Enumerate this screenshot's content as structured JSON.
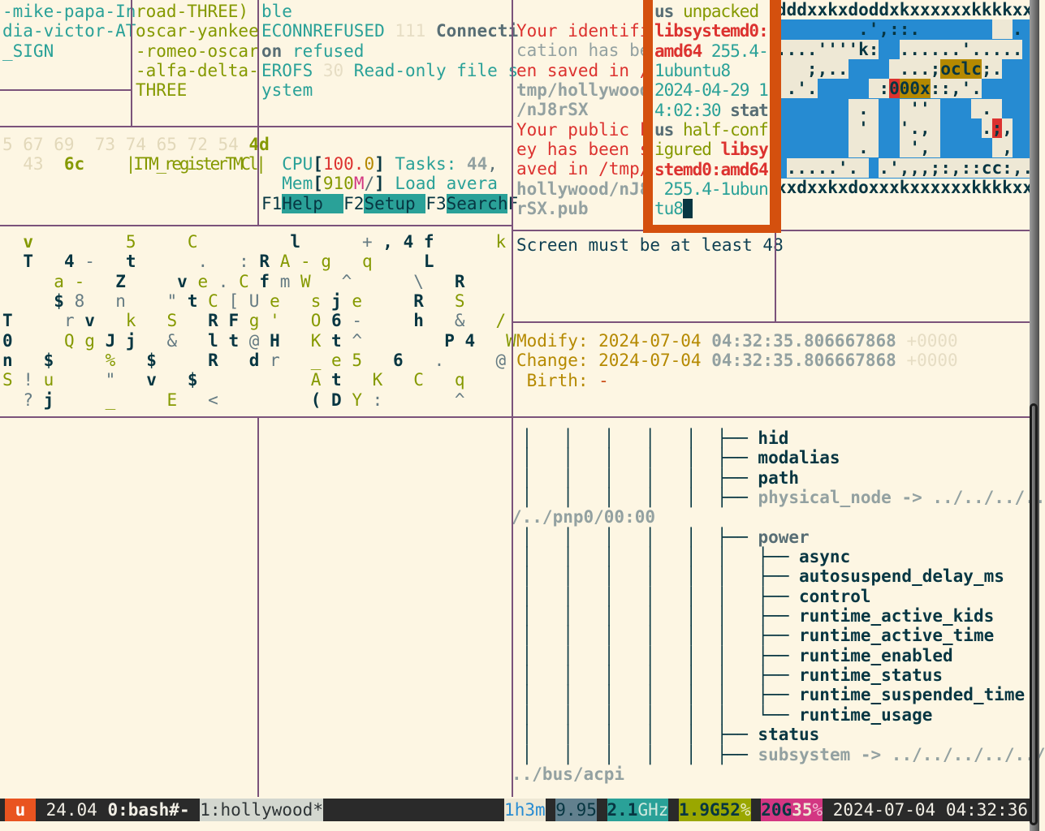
{
  "palette": {
    "background": "#fdf6e3",
    "pane_border": "#7b537b",
    "active_border": "#d4500e",
    "ocean_blue": "#268bd2",
    "cyan": "#2aa198",
    "green": "#859900",
    "red": "#dc322f",
    "yellow": "#b58900",
    "magenta": "#d33682",
    "gray": "#93a1a1",
    "dark": "#073642",
    "statusbar_bg": "#2a2a2a",
    "logo_orange": "#e95420"
  },
  "panes": {
    "phonetic1": {
      "lines": [
        "-mike-papa-In",
        "dia-victor-AT",
        "_SIGN"
      ]
    },
    "phonetic2": {
      "lines": [
        "road-THREE)",
        "oscar-yankee",
        "-romeo-oscar",
        "-alfa-delta-",
        "THREE"
      ]
    },
    "errno": {
      "lines": [
        [
          {
            "t": "ble",
            "c": "cyan"
          }
        ],
        [
          {
            "t": "ECONNREFUSED",
            "c": "cyan"
          },
          {
            "t": " 111 ",
            "c": "faint"
          },
          {
            "t": "Connecti",
            "c": "slate",
            "w": 1
          }
        ],
        [
          {
            "t": "on",
            "c": "slate",
            "w": 1
          },
          {
            "t": " refused",
            "c": "cyan"
          }
        ],
        [
          {
            "t": "EROFS",
            "c": "cyan"
          },
          {
            "t": " 30 ",
            "c": "faint"
          },
          {
            "t": "Read-only file s",
            "c": "cyan"
          }
        ],
        [
          {
            "t": "ystem",
            "c": "cyan"
          }
        ]
      ]
    },
    "hexdump": {
      "lines": [
        [
          {
            "t": "5 67 69  73 74 65 72 54",
            "c": "faint2"
          },
          {
            "t": " "
          },
          {
            "t": "4d",
            "c": "green",
            "w": 1
          }
        ],
        [
          {
            "t": "  43",
            "c": "faint2"
          },
          {
            "t": "  "
          },
          {
            "t": "6c",
            "c": "green",
            "w": 1
          },
          {
            "t": "    "
          },
          {
            "t": "|ITM_registerTMCl|",
            "c": "green",
            "cond": 1
          }
        ]
      ]
    },
    "htop": {
      "lines": [
        [
          {
            "t": "  CPU",
            "c": "cyan"
          },
          {
            "t": "[",
            "c": "dark",
            "w": 1
          },
          {
            "t": "100.",
            "c": "red"
          },
          {
            "t": "0",
            "c": "yellow"
          },
          {
            "t": "]",
            "c": "dark",
            "w": 1
          },
          {
            "t": " Tasks: ",
            "c": "cyan"
          },
          {
            "t": "44",
            "c": "gray",
            "w": 1
          },
          {
            "t": ",",
            "c": "slate"
          }
        ],
        [
          {
            "t": "  Mem",
            "c": "cyan"
          },
          {
            "t": "[",
            "c": "dark",
            "w": 1
          },
          {
            "t": "910",
            "c": "green"
          },
          {
            "t": "M",
            "c": "magenta"
          },
          {
            "t": "/",
            "c": "slate"
          },
          {
            "t": "]",
            "c": "dark",
            "w": 1
          },
          {
            "t": " Load avera",
            "c": "cyan"
          }
        ],
        [
          {
            "t": "F1",
            "c": "dark"
          },
          {
            "t": "Help  ",
            "c": "dark",
            "b": "keybtn"
          },
          {
            "t": "F2",
            "c": "dark"
          },
          {
            "t": "Setup ",
            "c": "dark",
            "b": "keybtn"
          },
          {
            "t": "F3",
            "c": "dark"
          },
          {
            "t": "Search",
            "c": "dark",
            "b": "keybtn"
          },
          {
            "t": "F",
            "c": "dark"
          }
        ]
      ]
    },
    "matrix": {
      "rows": [
        {
          "t": "  v         5     C         l      + , 4 f      k ",
          "m": "  O         o     o         S      s S S S      o "
        },
        {
          "t": "  T   4 -   t      .   : R A - g   q     L        ",
          "m": "  S   S s   S      s   s S o o o   o     S        "
        },
        {
          "t": "     a -   Z     v e . C f m W   ^      \\   R     ",
          "m": "     o o   S     S o s o S s o   s      s   S     "
        },
        {
          "t": "     $ 8   n    \" t C [ U e   s j e     R   S    ",
          "m": "     S s   s    s S o s s o   o S o     S   o    "
        },
        {
          "t": "T     r v   k   S   R F g '   O 6 -     h   &   / ",
          "m": "S     s S   o   o   S S o o   o S s     S   s   o "
        },
        {
          "t": "0     Q g J j   &   l t @ H   K t ^        P 4   W",
          "m": "S     o o S S   s   S S s S   o S s        S S   o"
        },
        {
          "t": "n   $     %   $     R   d r   _ e 5   6   .     @ ",
          "m": "S   S     o   S     S   S s   o o o   S   s     s "
        },
        {
          "t": "S ! u     \"   v   $           A t   K   C   q    ",
          "m": "o s o     s   S   S           o S   o   o   o    "
        },
        {
          "t": "  ? j     _     E   <         ( D Y :       ^     ",
          "m": "  s S     o     o   s         S S o s       s     "
        }
      ]
    },
    "keygen": {
      "lines": [
        {
          "t": "Your identifi",
          "c": "red"
        },
        {
          "t": "cation has be",
          "c": "gray"
        },
        {
          "t": "en saved in /",
          "c": "red"
        },
        {
          "t": "tmp/hollywood",
          "c": "gray",
          "w": 1
        },
        {
          "t": "/nJ8rSX",
          "c": "gray",
          "w": 1
        },
        {
          "t": "Your public k",
          "c": "red"
        },
        {
          "t": "ey has been s",
          "c": "red"
        },
        {
          "t": "aved in /tmp/",
          "c": "red"
        },
        {
          "t": "hollywood/nJ8",
          "c": "gray",
          "w": 1
        },
        {
          "t": "rSX.pub",
          "c": "gray",
          "w": 1
        }
      ]
    },
    "apt": {
      "lines": [
        [
          {
            "t": "us",
            "c": "slate",
            "w": 1
          },
          {
            "t": " unpacked",
            "c": "green"
          }
        ],
        [
          {
            "t": "libsystemd0:",
            "c": "red",
            "w": 1
          }
        ],
        [
          {
            "t": "amd64",
            "c": "red",
            "w": 1
          },
          {
            "t": " 255.4-",
            "c": "cyan"
          }
        ],
        [
          {
            "t": "1ubuntu8",
            "c": "cyan"
          }
        ],
        [
          {
            "t": "2024-04-29 1",
            "c": "cyan"
          }
        ],
        [
          {
            "t": "4:02:30",
            "c": "cyan"
          },
          {
            "t": " "
          },
          {
            "t": "stat",
            "c": "slate",
            "w": 1
          }
        ],
        [
          {
            "t": "us",
            "c": "slate",
            "w": 1
          },
          {
            "t": " half-conf",
            "c": "green"
          }
        ],
        [
          {
            "t": "igured",
            "c": "green"
          },
          {
            "t": " "
          },
          {
            "t": "libsy",
            "c": "red",
            "w": 1
          }
        ],
        [
          {
            "t": "stemd0:amd64",
            "c": "red",
            "w": 1
          }
        ],
        [
          {
            "t": " 255.4-1ubun",
            "c": "cyan"
          }
        ],
        [
          {
            "t": "tu8",
            "c": "cyan"
          },
          {
            "t": " ",
            "b": "cursor"
          }
        ]
      ]
    },
    "screen_warning": {
      "text": "Screen must be at least 48"
    },
    "stat": {
      "lines": [
        [
          {
            "t": "Modify: 2024-07-04 ",
            "c": "yellow"
          },
          {
            "t": "04:32:35.806667868",
            "c": "gray",
            "w": 1
          },
          {
            "t": " +0000",
            "c": "faint"
          }
        ],
        [
          {
            "t": "Change: 2024-07-04 ",
            "c": "yellow"
          },
          {
            "t": "04:32:35.806667868",
            "c": "gray",
            "w": 1
          },
          {
            "t": " +0000",
            "c": "faint"
          }
        ],
        [
          {
            "t": " Birth: ",
            "c": "yellow"
          },
          {
            "t": "-",
            "c": "orange"
          }
        ]
      ]
    },
    "tree": {
      "lines": [
        [
          {
            "t": " │   │   │   │   │  ├── hid"
          }
        ],
        [
          {
            "t": " │   │   │   │   │  ├── modalias"
          }
        ],
        [
          {
            "t": " │   │   │   │   │  ├── path"
          }
        ],
        [
          {
            "t": " │   │   │   │   │  ├── "
          },
          {
            "t": "physical_node -> ../../../..",
            "c": "gray"
          }
        ],
        [
          {
            "t": "/../pnp0/00:00",
            "c": "gray"
          }
        ],
        [
          {
            "t": " │   │   │   │   │  ├── "
          },
          {
            "t": "power",
            "c": "slate"
          }
        ],
        [
          {
            "t": " │   │   │   │   │  │   ├── async"
          }
        ],
        [
          {
            "t": " │   │   │   │   │  │   ├── autosuspend_delay_ms"
          }
        ],
        [
          {
            "t": " │   │   │   │   │  │   ├── control"
          }
        ],
        [
          {
            "t": " │   │   │   │   │  │   ├── runtime_active_kids"
          }
        ],
        [
          {
            "t": " │   │   │   │   │  │   ├── runtime_active_time"
          }
        ],
        [
          {
            "t": " │   │   │   │   │  │   ├── runtime_enabled"
          }
        ],
        [
          {
            "t": " │   │   │   │   │  │   ├── runtime_status"
          }
        ],
        [
          {
            "t": " │   │   │   │   │  │   ├── runtime_suspended_time"
          }
        ],
        [
          {
            "t": " │   │   │   │   │  │   └── runtime_usage"
          }
        ],
        [
          {
            "t": " │   │   │   │   │  ├── status"
          }
        ],
        [
          {
            "t": " │   │   │   │   │  ├── "
          },
          {
            "t": "subsystem -> ../../../../../",
            "c": "gray"
          }
        ],
        [
          {
            "t": "../bus/acpi",
            "c": "gray"
          }
        ]
      ]
    },
    "map": {
      "lines": [
        [
          {
            "t": "dddxxkxdoddxkxxxxxxkkkkxx"
          }
        ],
        [
          {
            "t": "        .',::.       "
          },
          {
            "t": "  ",
            "b": "land"
          },
          {
            "t": ". "
          }
        ],
        [
          {
            "t": "....''''k:",
            "b": "land"
          },
          {
            "t": "  "
          },
          {
            "t": "......'.....",
            "b": "land"
          },
          {
            "t": " "
          }
        ],
        [
          {
            "t": "   ;,..",
            "b": "land"
          },
          {
            "t": "    "
          },
          {
            "t": " ...;",
            "b": "land"
          },
          {
            "t": "oclc",
            "b": "y"
          },
          {
            "t": ";.",
            "b": "land"
          },
          {
            "t": "   "
          }
        ],
        [
          {
            "t": " .'.",
            "b": "land"
          },
          {
            "t": "     "
          },
          {
            "t": " :",
            "b": "land"
          },
          {
            "t": "0",
            "b": "r"
          },
          {
            "t": "00x",
            "b": "y"
          },
          {
            "t": "::,'.",
            "b": "land"
          },
          {
            "t": "     "
          }
        ],
        [
          {
            "t": "       "
          },
          {
            "t": " . ",
            "b": "land"
          },
          {
            "t": "  "
          },
          {
            "t": " '' ",
            "b": "land"
          },
          {
            "t": "   "
          },
          {
            "t": " . ",
            "b": "land"
          },
          {
            "t": "   "
          }
        ],
        [
          {
            "t": "       "
          },
          {
            "t": " ' ",
            "b": "land"
          },
          {
            "t": "  "
          },
          {
            "t": "'., ",
            "b": "land"
          },
          {
            "t": "    "
          },
          {
            "t": ".",
            "b": "land"
          },
          {
            "t": ";",
            "b": "r"
          },
          {
            "t": ",",
            "b": "land"
          },
          {
            "t": "   "
          }
        ],
        [
          {
            "t": "       "
          },
          {
            "t": " . ",
            "b": "land"
          },
          {
            "t": "  "
          },
          {
            "t": " ', ",
            "b": "land"
          },
          {
            "t": "     "
          },
          {
            "t": " ,",
            "b": "land"
          },
          {
            "t": "  "
          }
        ],
        [
          {
            "t": " "
          },
          {
            "t": ".....'. ",
            "b": "land"
          },
          {
            "t": " "
          },
          {
            "t": ".',,,;:,::cc:,.",
            "b": "land"
          }
        ],
        [
          {
            "t": "xxdxxkxdoxxxkxxxxxxkkkkxx"
          }
        ]
      ]
    }
  },
  "status_bar": {
    "logo": " u ",
    "version": " 24.04 ",
    "window0": "0:bash#- ",
    "window1": "1:hollywood*",
    "right": [
      {
        "t": "1h3m",
        "b": "cream2",
        "c": "blue"
      },
      {
        "t": " "
      },
      {
        "t": "9.95",
        "b": "steel",
        "c": "ink"
      },
      {
        "t": " "
      },
      {
        "t": "2.1",
        "b": "teal",
        "c": "ink",
        "w": 1
      },
      {
        "t": "GHz",
        "b": "teal",
        "c": "paleteal"
      },
      {
        "t": " "
      },
      {
        "t": "1.9G",
        "b": "olive",
        "c": "ink",
        "w": 1
      },
      {
        "t": "52",
        "b": "olive",
        "c": "ink",
        "w": 1
      },
      {
        "t": "%",
        "b": "olive",
        "c": "paleolive"
      },
      {
        "t": " "
      },
      {
        "t": "20G",
        "b": "pink",
        "c": "ink",
        "w": 1
      },
      {
        "t": "35",
        "b": "pink",
        "c": "cream",
        "w": 1
      },
      {
        "t": "%",
        "b": "pink",
        "c": "palepink"
      },
      {
        "t": " 2024-07-04 04:32:36",
        "c": "white"
      }
    ]
  }
}
